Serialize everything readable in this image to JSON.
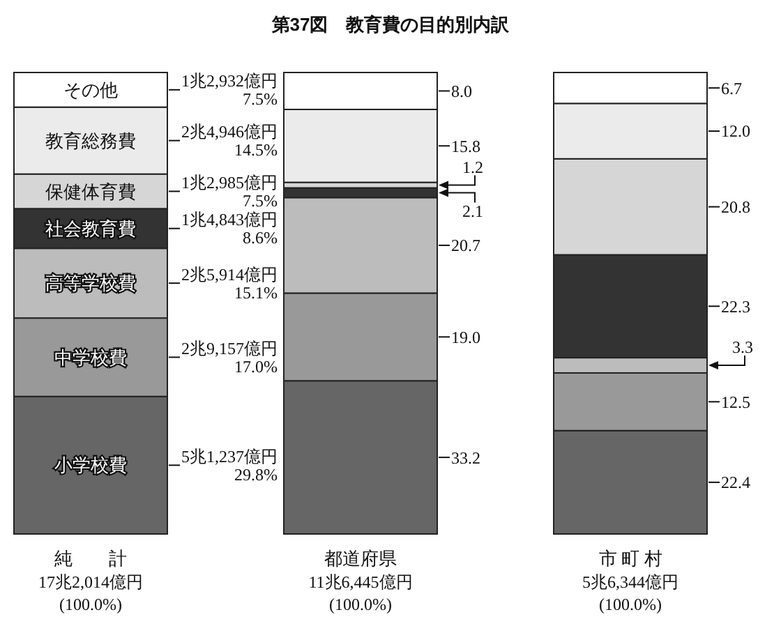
{
  "chart_data": {
    "type": "bar",
    "title": "第37図　教育費の目的別内訳",
    "categories": [
      "純　　計",
      "都道府県",
      "市 町 村"
    ],
    "stacked": true,
    "series": [
      {
        "name": "小学校費",
        "color": "#666666",
        "values": [
          29.8,
          33.2,
          22.4
        ],
        "value_labels": [
          "5兆1,237億円\n29.8%",
          "33.2",
          "22.4"
        ]
      },
      {
        "name": "中学校費",
        "color": "#999999",
        "values": [
          17.0,
          19.0,
          12.5
        ],
        "value_labels": [
          "2兆9,157億円\n17.0%",
          "19.0",
          "12.5"
        ]
      },
      {
        "name": "高等学校費",
        "color": "#bcbcbc",
        "values": [
          15.1,
          20.7,
          3.3
        ],
        "value_labels": [
          "2兆5,914億円\n15.1%",
          "20.7",
          "3.3"
        ]
      },
      {
        "name": "社会教育費",
        "color": "#333333",
        "values": [
          8.6,
          2.1,
          22.3
        ],
        "value_labels": [
          "1兆4,843億円\n8.6%",
          "2.1",
          "22.3"
        ]
      },
      {
        "name": "保健体育費",
        "color": "#d6d6d6",
        "values": [
          7.5,
          1.2,
          20.8
        ],
        "value_labels": [
          "1兆2,985億円\n7.5%",
          "1.2",
          "20.8"
        ]
      },
      {
        "name": "教育総務費",
        "color": "#ebebeb",
        "values": [
          14.5,
          15.8,
          12.0
        ],
        "value_labels": [
          "2兆4,946億円\n14.5%",
          "15.8",
          "12.0"
        ]
      },
      {
        "name": "その他",
        "color": "#ffffff",
        "values": [
          7.5,
          8.0,
          6.7
        ],
        "value_labels": [
          "1兆2,932億円\n7.5%",
          "8.0",
          "6.7"
        ]
      }
    ],
    "totals": [
      "17兆2,014億円\n(100.0%)",
      "11兆6,445億円\n(100.0%)",
      "5兆6,344億円\n(100.0%)"
    ]
  }
}
